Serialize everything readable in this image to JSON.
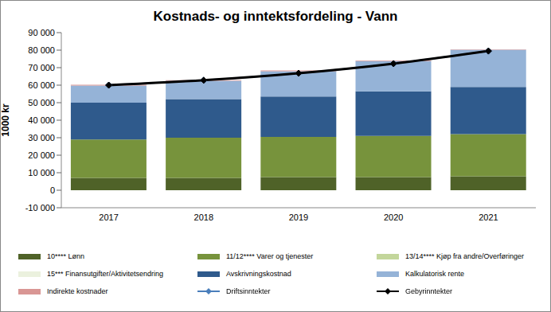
{
  "chart_data": {
    "type": "bar",
    "stacked": true,
    "title": "Kostnads- og inntektsfordeling - Vann",
    "y_label": "1000 kr",
    "categories": [
      "2017",
      "2018",
      "2019",
      "2020",
      "2021"
    ],
    "ylim": [
      -10000,
      90000
    ],
    "yticks": [
      {
        "value": -10000,
        "label": "-10 000"
      },
      0,
      {
        "value": 10000,
        "label": "10 000"
      },
      {
        "value": 20000,
        "label": "20 000"
      },
      {
        "value": 30000,
        "label": "30 000"
      },
      {
        "value": 40000,
        "label": "40 000"
      },
      {
        "value": 50000,
        "label": "50 000"
      },
      {
        "value": 60000,
        "label": "60 000"
      },
      {
        "value": 70000,
        "label": "70 000"
      },
      {
        "value": 80000,
        "label": "80 000"
      },
      {
        "value": 90000,
        "label": "90 000"
      }
    ],
    "grid": false,
    "legend": "bottom",
    "series": [
      {
        "name": "10**** Lønn",
        "type": "bar",
        "color": "#4f6228",
        "values": [
          7000,
          7000,
          7500,
          7500,
          8000
        ]
      },
      {
        "name": "11/12**** Varer og tjenester",
        "type": "bar",
        "color": "#77933c",
        "values": [
          22000,
          23000,
          23000,
          23500,
          24000
        ]
      },
      {
        "name": "13/14**** Kjøp fra andre/Overføringer",
        "type": "bar",
        "color": "#c3d69b",
        "values": [
          0,
          0,
          0,
          0,
          0
        ]
      },
      {
        "name": "15*** Finansutgifter/Aktivitetsendring",
        "type": "bar",
        "color": "#ebf1de",
        "values": [
          0,
          0,
          0,
          0,
          0
        ]
      },
      {
        "name": "Avskrivningskostnad",
        "type": "bar",
        "color": "#2f5a8c",
        "values": [
          21000,
          22000,
          23000,
          25500,
          27000
        ]
      },
      {
        "name": "Kalkulatorisk rente",
        "type": "bar",
        "color": "#95b3d7",
        "values": [
          9800,
          10500,
          14500,
          17200,
          21200
        ]
      },
      {
        "name": "Indirekte kostnader",
        "type": "bar",
        "color": "#d99694",
        "values": [
          400,
          300,
          400,
          400,
          300
        ]
      },
      {
        "name": "Driftsinntekter",
        "type": "line",
        "color": "#4a7ebb",
        "marker": "diamond",
        "values": [
          60000,
          62800,
          66800,
          72300,
          79500
        ]
      },
      {
        "name": "Gebyrinntekter",
        "type": "line",
        "color": "#000000",
        "marker": "diamond",
        "values": [
          60000,
          62800,
          66800,
          72300,
          79500
        ]
      }
    ]
  }
}
